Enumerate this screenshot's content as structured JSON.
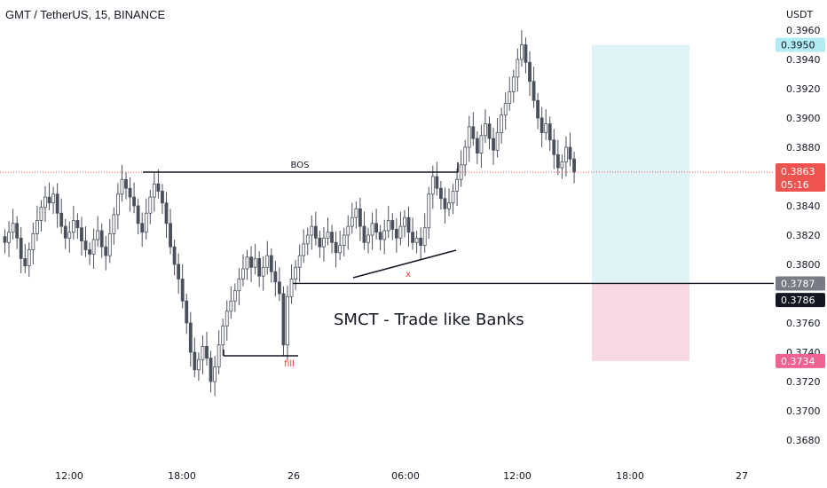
{
  "header": {
    "title": "GMT / TetherUS, 15, BINANCE"
  },
  "colors": {
    "up": "#26a69a",
    "down": "#ef5350",
    "candle": "#4a4f5c",
    "profit_zone": "#dff3f6",
    "loss_zone": "#f8d9e3",
    "price_line": "#ef5350",
    "line": "#131722"
  },
  "chart_data": {
    "type": "candlestick",
    "y_unit": "USDT",
    "ylim": [
      0.3665,
      0.397
    ],
    "y_ticks": [
      "0.3960",
      "0.3940",
      "0.3920",
      "0.3900",
      "0.3880",
      "0.3840",
      "0.3820",
      "0.3800",
      "0.3760",
      "0.3740",
      "0.3720",
      "0.3700",
      "0.3680"
    ],
    "x_ticks": [
      "12:00",
      "18:00",
      "26",
      "06:00",
      "12:00",
      "18:00",
      "27"
    ],
    "current_price": {
      "value": "0.3863",
      "timer": "05:16"
    },
    "price_badges": [
      {
        "value": "0.3950",
        "style": "target"
      },
      {
        "value": "0.3787",
        "style": "entry"
      },
      {
        "value": "0.3786",
        "style": "dark"
      },
      {
        "value": "0.3734",
        "style": "stop"
      }
    ],
    "position": {
      "target": 0.395,
      "entry": 0.3787,
      "stop": 0.3734
    },
    "annotations": {
      "bos": "BOS",
      "fill": "fill",
      "x_mark": "x",
      "watermark": "SMCT - Trade like Banks"
    },
    "candles_close": [
      0.3815,
      0.3822,
      0.3828,
      0.3818,
      0.3804,
      0.3799,
      0.381,
      0.3821,
      0.383,
      0.3839,
      0.3846,
      0.3842,
      0.3848,
      0.3835,
      0.3826,
      0.3818,
      0.3822,
      0.383,
      0.3825,
      0.3816,
      0.381,
      0.3807,
      0.3817,
      0.3823,
      0.3812,
      0.3806,
      0.3821,
      0.3834,
      0.3848,
      0.3858,
      0.3852,
      0.3846,
      0.384,
      0.3828,
      0.3822,
      0.3835,
      0.3846,
      0.3855,
      0.385,
      0.3842,
      0.3828,
      0.3812,
      0.38,
      0.379,
      0.3775,
      0.376,
      0.374,
      0.3728,
      0.3735,
      0.3744,
      0.3736,
      0.372,
      0.373,
      0.3745,
      0.3758,
      0.3768,
      0.3775,
      0.3782,
      0.379,
      0.3797,
      0.3805,
      0.3798,
      0.3804,
      0.3792,
      0.3798,
      0.3806,
      0.3795,
      0.3788,
      0.378,
      0.3745,
      0.3778,
      0.379,
      0.3798,
      0.3806,
      0.3814,
      0.382,
      0.3826,
      0.3818,
      0.3812,
      0.3818,
      0.3822,
      0.3815,
      0.3808,
      0.3813,
      0.382,
      0.3826,
      0.3832,
      0.3838,
      0.3826,
      0.3815,
      0.382,
      0.3828,
      0.3822,
      0.3817,
      0.3823,
      0.383,
      0.3824,
      0.3818,
      0.3826,
      0.3832,
      0.3822,
      0.3815,
      0.3818,
      0.3813,
      0.3825,
      0.3848,
      0.386,
      0.3852,
      0.3845,
      0.3838,
      0.3842,
      0.385,
      0.3858,
      0.3868,
      0.388,
      0.3894,
      0.3886,
      0.3876,
      0.3888,
      0.3896,
      0.3886,
      0.3878,
      0.389,
      0.3902,
      0.391,
      0.3918,
      0.3928,
      0.394,
      0.395,
      0.3938,
      0.3925,
      0.3912,
      0.39,
      0.389,
      0.3896,
      0.3885,
      0.3875,
      0.3866,
      0.387,
      0.388,
      0.3872,
      0.3863
    ]
  }
}
